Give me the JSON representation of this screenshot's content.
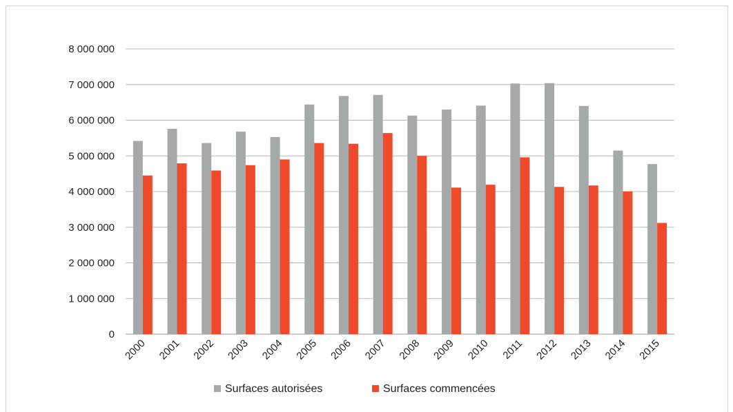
{
  "chart_data": {
    "type": "bar",
    "title": "",
    "xlabel": "",
    "ylabel": "",
    "ylim": [
      0,
      8000000
    ],
    "yticks": [
      0,
      1000000,
      2000000,
      3000000,
      4000000,
      5000000,
      6000000,
      7000000,
      8000000
    ],
    "ytick_labels": [
      "0",
      "1 000 000",
      "2 000 000",
      "3 000 000",
      "4 000 000",
      "5 000 000",
      "6 000 000",
      "7 000 000",
      "8 000 000"
    ],
    "grid": true,
    "legend_position": "bottom",
    "categories": [
      "2000",
      "2001",
      "2002",
      "2003",
      "2004",
      "2005",
      "2006",
      "2007",
      "2008",
      "2009",
      "2010",
      "2011",
      "2012",
      "2013",
      "2014",
      "2015"
    ],
    "series": [
      {
        "name": "Surfaces autorisées",
        "color": "#a5a9aa",
        "values": [
          5420000,
          5760000,
          5360000,
          5680000,
          5530000,
          6440000,
          6680000,
          6710000,
          6130000,
          6300000,
          6410000,
          7030000,
          7040000,
          6400000,
          5150000,
          4770000
        ]
      },
      {
        "name": "Surfaces commencées",
        "color": "#f04a2c",
        "values": [
          4450000,
          4790000,
          4590000,
          4740000,
          4900000,
          5360000,
          5340000,
          5640000,
          5000000,
          4110000,
          4190000,
          4960000,
          4130000,
          4170000,
          4000000,
          3120000
        ]
      }
    ]
  }
}
